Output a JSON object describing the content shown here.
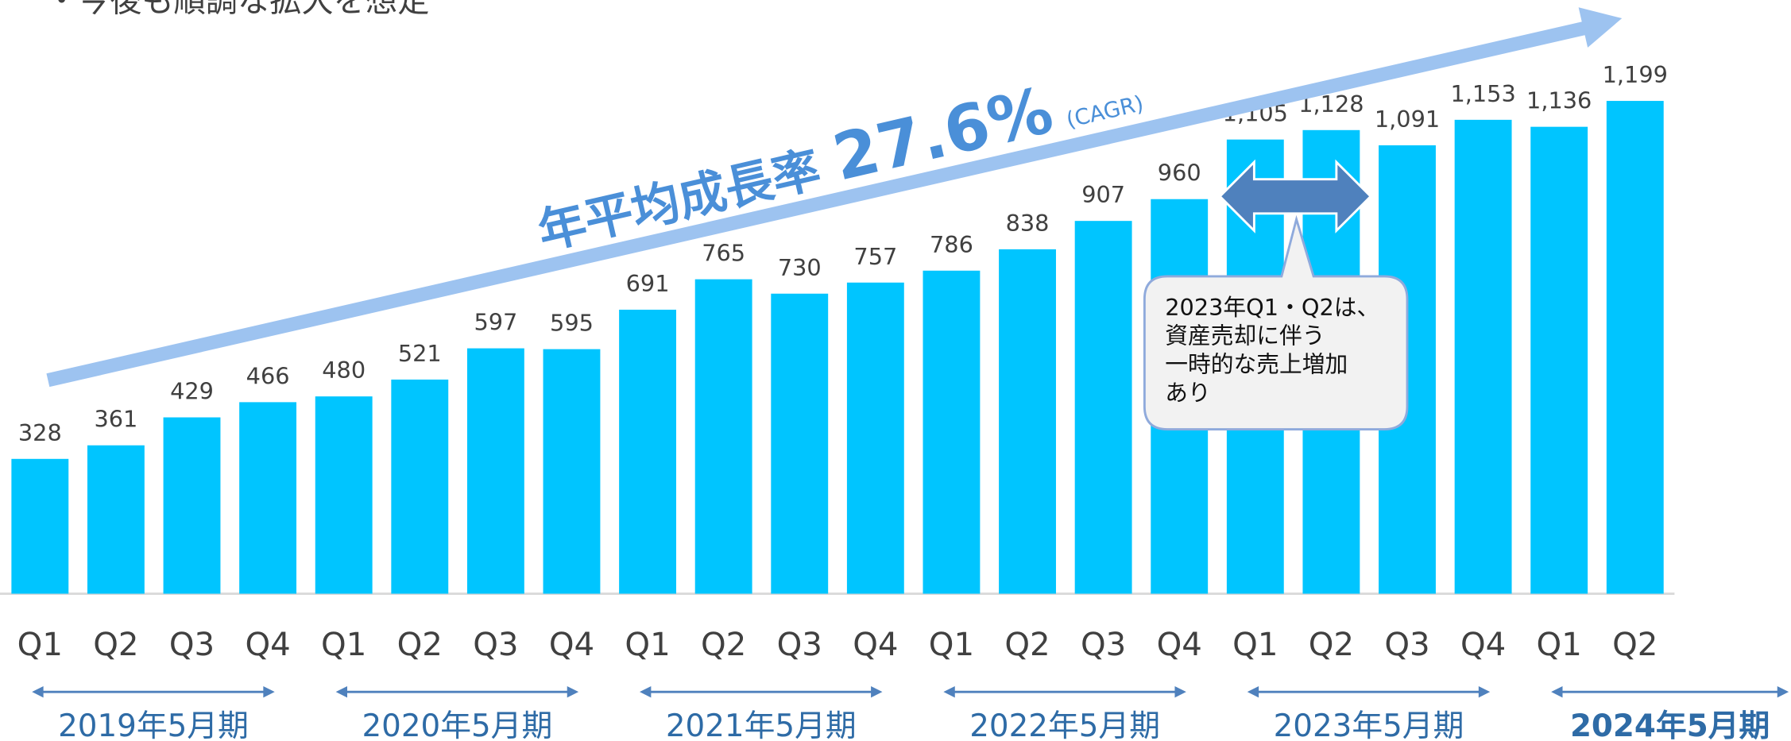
{
  "chart_data": {
    "type": "bar",
    "subtitle": "・今後も順調な拡大を想定",
    "categories": [
      "Q1",
      "Q2",
      "Q3",
      "Q4",
      "Q1",
      "Q2",
      "Q3",
      "Q4",
      "Q1",
      "Q2",
      "Q3",
      "Q4",
      "Q1",
      "Q2",
      "Q3",
      "Q4",
      "Q1",
      "Q2",
      "Q3",
      "Q4",
      "Q1",
      "Q2"
    ],
    "values": [
      328,
      361,
      429,
      466,
      480,
      521,
      597,
      595,
      691,
      765,
      730,
      757,
      786,
      838,
      907,
      960,
      1105,
      1128,
      1091,
      1153,
      1136,
      1199
    ],
    "value_labels": [
      "328",
      "361",
      "429",
      "466",
      "480",
      "521",
      "597",
      "595",
      "691",
      "765",
      "730",
      "757",
      "786",
      "838",
      "907",
      "960",
      "1,105",
      "1,128",
      "1,091",
      "1,153",
      "1,136",
      "1,199"
    ],
    "color": "#00c5ff",
    "periods": [
      "2019年5月期",
      "2020年5月期",
      "2021年5月期",
      "2022年5月期",
      "2023年5月期",
      "2024年5月期"
    ],
    "cagr": {
      "label": "年平均成長率",
      "value": "27.6%",
      "note": "(CAGR)"
    },
    "callout": [
      "2023年Q1・Q2は、",
      "資産売却に伴う",
      "一時的な売上増加",
      "あり"
    ]
  }
}
